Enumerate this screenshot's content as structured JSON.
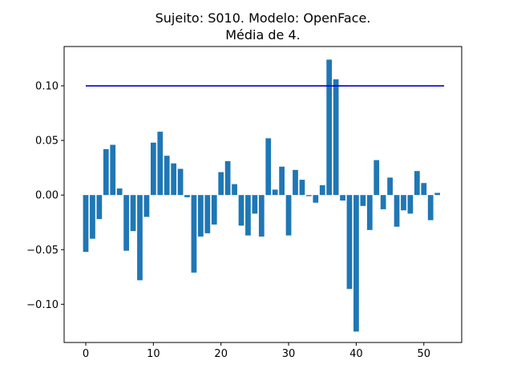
{
  "chart_data": {
    "type": "bar",
    "title_line1": "Sujeito: S010. Modelo: OpenFace.",
    "title_line2": "Média de 4.",
    "xlabel": "",
    "ylabel": "",
    "xlim": [
      -3.2,
      55.6
    ],
    "ylim": [
      -0.135,
      0.136
    ],
    "xticks": [
      0,
      10,
      20,
      30,
      40,
      50
    ],
    "xtick_labels": [
      "0",
      "10",
      "20",
      "30",
      "40",
      "50"
    ],
    "yticks": [
      -0.1,
      -0.05,
      0.0,
      0.05,
      0.1
    ],
    "ytick_labels": [
      "−0.10",
      "−0.05",
      "0.00",
      "0.05",
      "0.10"
    ],
    "bar_color": "#1f77b4",
    "bar_width": 0.8,
    "x": [
      0,
      1,
      2,
      3,
      4,
      5,
      6,
      7,
      8,
      9,
      10,
      11,
      12,
      13,
      14,
      15,
      16,
      17,
      18,
      19,
      20,
      21,
      22,
      23,
      24,
      25,
      26,
      27,
      28,
      29,
      30,
      31,
      32,
      33,
      34,
      35,
      36,
      37,
      38,
      39,
      40,
      41,
      42,
      43,
      44,
      45,
      46,
      47,
      48,
      49,
      50,
      51,
      52
    ],
    "values": [
      -0.052,
      -0.04,
      -0.022,
      0.042,
      0.046,
      0.006,
      -0.051,
      -0.033,
      -0.078,
      -0.02,
      0.048,
      0.058,
      0.036,
      0.029,
      0.024,
      -0.002,
      -0.071,
      -0.038,
      -0.035,
      -0.027,
      0.021,
      0.031,
      0.01,
      -0.028,
      -0.037,
      -0.017,
      -0.038,
      0.052,
      0.005,
      0.026,
      -0.037,
      0.023,
      0.014,
      -0.001,
      -0.007,
      0.009,
      0.124,
      0.106,
      -0.005,
      -0.086,
      -0.125,
      -0.01,
      -0.032,
      0.032,
      -0.013,
      0.016,
      -0.029,
      -0.014,
      -0.017,
      0.022,
      0.011,
      -0.023,
      0.002
    ],
    "threshold_line": {
      "value": 0.1,
      "x_start": 0,
      "x_end": 53,
      "color": "#0000cc"
    }
  }
}
